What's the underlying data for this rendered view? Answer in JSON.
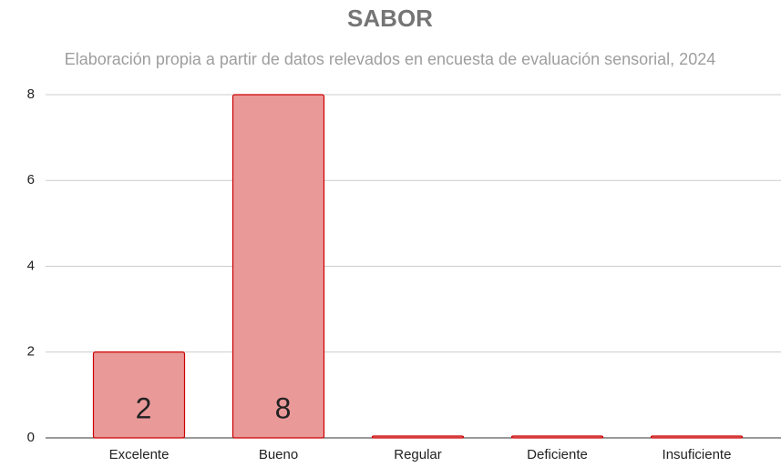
{
  "chart_data": {
    "type": "bar",
    "title": "SABOR",
    "subtitle": "Elaboración propia a partir de datos relevados en encuesta de evaluación sensorial, 2024",
    "categories": [
      "Excelente",
      "Bueno",
      "Regular",
      "Deficiente",
      "Insuficiente"
    ],
    "values": [
      2,
      8,
      0,
      0,
      0
    ],
    "color": "#ea9999",
    "edge_color": "#cc0000",
    "ylim": [
      0,
      8
    ],
    "yticks": [
      0,
      2,
      4,
      6,
      8
    ],
    "grid": true
  }
}
